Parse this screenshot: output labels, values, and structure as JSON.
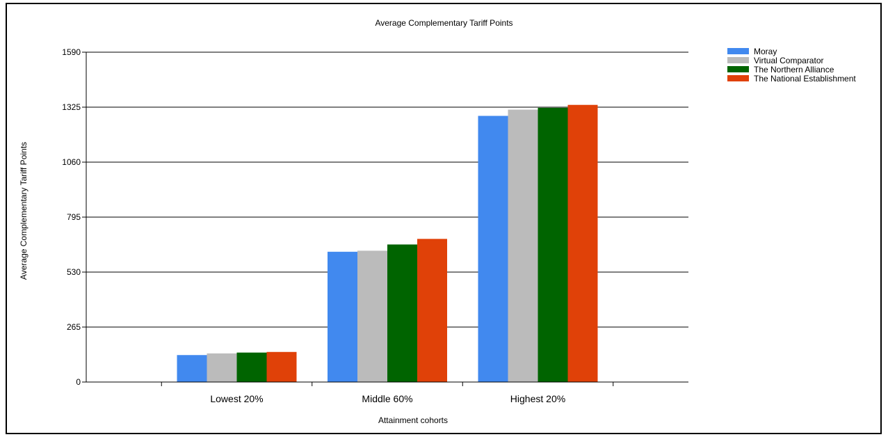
{
  "chart_data": {
    "type": "bar",
    "title": "Average Complementary Tariff Points",
    "xlabel": "Attainment cohorts",
    "ylabel": "Average Complementary Tariff Points",
    "categories": [
      "Lowest 20%",
      "Middle 60%",
      "Highest 20%"
    ],
    "series": [
      {
        "name": "Moray",
        "color": "#4189ef",
        "values": [
          130,
          628,
          1283
        ]
      },
      {
        "name": "Virtual Comparator",
        "color": "#bbbbbb",
        "values": [
          138,
          633,
          1313
        ]
      },
      {
        "name": "The Northern Alliance",
        "color": "#006400",
        "values": [
          142,
          663,
          1322
        ]
      },
      {
        "name": "The National Establishment",
        "color": "#e04108",
        "values": [
          145,
          690,
          1336
        ]
      }
    ],
    "ylim": [
      0,
      1590
    ],
    "yticks": [
      0,
      265,
      530,
      795,
      1060,
      1325,
      1590
    ],
    "grid": true,
    "legend_position": "top-right"
  }
}
